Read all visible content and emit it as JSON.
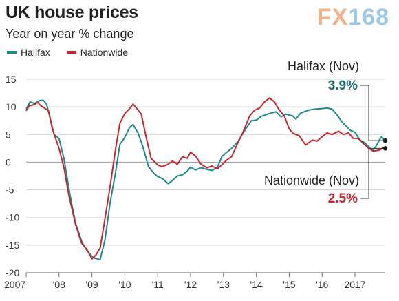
{
  "header": {
    "title": "UK house prices",
    "subtitle": "Year on year % change",
    "logo_fx": "FX",
    "logo_num": "168"
  },
  "colors": {
    "halifax": "#1a8a8a",
    "nationwide": "#c8242b",
    "grid": "#d4d4d4"
  },
  "chart_data": {
    "type": "line",
    "title": "UK house prices",
    "subtitle": "Year on year % change",
    "ylim": [
      -20,
      15
    ],
    "yticks": [
      15,
      10,
      5,
      0,
      -5,
      -10,
      -15,
      -20
    ],
    "xlim": [
      2007.0,
      2017.92
    ],
    "xticks": [
      {
        "label": "2007",
        "x": 2007
      },
      {
        "label": "'08",
        "x": 2008
      },
      {
        "label": "'09",
        "x": 2009
      },
      {
        "label": "'10",
        "x": 2010
      },
      {
        "label": "'11",
        "x": 2011
      },
      {
        "label": "'12",
        "x": 2012
      },
      {
        "label": "'13",
        "x": 2013
      },
      {
        "label": "'14",
        "x": 2014
      },
      {
        "label": "'15",
        "x": 2015
      },
      {
        "label": "'16",
        "x": 2016
      },
      {
        "label": "2017",
        "x": 2017
      }
    ],
    "grid": true,
    "legend": "top-left",
    "series": [
      {
        "name": "Halifax",
        "points": [
          [
            2007.0,
            9.6
          ],
          [
            2007.12,
            10.9
          ],
          [
            2007.25,
            10.6
          ],
          [
            2007.4,
            11.1
          ],
          [
            2007.52,
            11.2
          ],
          [
            2007.62,
            10.5
          ],
          [
            2007.72,
            8.2
          ],
          [
            2007.85,
            5.0
          ],
          [
            2008.0,
            4.3
          ],
          [
            2008.15,
            0.6
          ],
          [
            2008.32,
            -5.5
          ],
          [
            2008.5,
            -11.0
          ],
          [
            2008.7,
            -14.5
          ],
          [
            2008.85,
            -16.0
          ],
          [
            2009.0,
            -17.0
          ],
          [
            2009.1,
            -17.4
          ],
          [
            2009.25,
            -17.6
          ],
          [
            2009.4,
            -14.0
          ],
          [
            2009.55,
            -7.5
          ],
          [
            2009.72,
            -1.8
          ],
          [
            2009.85,
            3.2
          ],
          [
            2010.0,
            4.5
          ],
          [
            2010.15,
            6.3
          ],
          [
            2010.25,
            6.8
          ],
          [
            2010.4,
            5.3
          ],
          [
            2010.55,
            2.8
          ],
          [
            2010.72,
            -0.8
          ],
          [
            2010.9,
            -2.1
          ],
          [
            2011.0,
            -2.6
          ],
          [
            2011.15,
            -3.0
          ],
          [
            2011.32,
            -3.9
          ],
          [
            2011.45,
            -3.3
          ],
          [
            2011.6,
            -2.5
          ],
          [
            2011.75,
            -2.3
          ],
          [
            2011.9,
            -1.6
          ],
          [
            2012.0,
            -0.9
          ],
          [
            2012.15,
            -1.4
          ],
          [
            2012.32,
            -1.0
          ],
          [
            2012.5,
            -1.3
          ],
          [
            2012.65,
            -1.5
          ],
          [
            2012.82,
            -0.9
          ],
          [
            2012.95,
            1.0
          ],
          [
            2013.1,
            1.8
          ],
          [
            2013.25,
            2.5
          ],
          [
            2013.45,
            3.8
          ],
          [
            2013.65,
            5.8
          ],
          [
            2013.85,
            7.5
          ],
          [
            2014.0,
            7.6
          ],
          [
            2014.15,
            8.3
          ],
          [
            2014.3,
            8.6
          ],
          [
            2014.45,
            8.9
          ],
          [
            2014.6,
            9.1
          ],
          [
            2014.75,
            8.2
          ],
          [
            2014.9,
            8.7
          ],
          [
            2015.0,
            8.5
          ],
          [
            2015.1,
            8.4
          ],
          [
            2015.2,
            7.8
          ],
          [
            2015.35,
            8.9
          ],
          [
            2015.5,
            9.2
          ],
          [
            2015.65,
            9.5
          ],
          [
            2015.8,
            9.6
          ],
          [
            2016.0,
            9.7
          ],
          [
            2016.15,
            9.8
          ],
          [
            2016.3,
            9.6
          ],
          [
            2016.45,
            8.6
          ],
          [
            2016.6,
            7.3
          ],
          [
            2016.75,
            6.4
          ],
          [
            2016.85,
            5.8
          ],
          [
            2017.0,
            5.4
          ],
          [
            2017.15,
            4.0
          ],
          [
            2017.3,
            3.5
          ],
          [
            2017.45,
            2.6
          ],
          [
            2017.55,
            2.1
          ],
          [
            2017.65,
            3.0
          ],
          [
            2017.8,
            4.6
          ],
          [
            2017.92,
            3.9
          ]
        ]
      },
      {
        "name": "Nationwide",
        "points": [
          [
            2007.0,
            9.3
          ],
          [
            2007.1,
            10.2
          ],
          [
            2007.25,
            10.4
          ],
          [
            2007.35,
            10.8
          ],
          [
            2007.45,
            10.2
          ],
          [
            2007.55,
            9.8
          ],
          [
            2007.68,
            9.3
          ],
          [
            2007.8,
            6.0
          ],
          [
            2008.0,
            2.5
          ],
          [
            2008.15,
            -1.0
          ],
          [
            2008.3,
            -6.0
          ],
          [
            2008.5,
            -11.2
          ],
          [
            2008.68,
            -14.6
          ],
          [
            2008.85,
            -15.8
          ],
          [
            2009.0,
            -17.5
          ],
          [
            2009.12,
            -16.8
          ],
          [
            2009.25,
            -15.5
          ],
          [
            2009.35,
            -12.0
          ],
          [
            2009.55,
            -4.5
          ],
          [
            2009.72,
            2.4
          ],
          [
            2009.85,
            7.0
          ],
          [
            2010.0,
            8.8
          ],
          [
            2010.12,
            9.5
          ],
          [
            2010.25,
            10.5
          ],
          [
            2010.35,
            9.8
          ],
          [
            2010.5,
            8.7
          ],
          [
            2010.65,
            4.5
          ],
          [
            2010.8,
            0.7
          ],
          [
            2011.0,
            -0.5
          ],
          [
            2011.12,
            -0.8
          ],
          [
            2011.28,
            -0.5
          ],
          [
            2011.45,
            0.2
          ],
          [
            2011.6,
            -0.4
          ],
          [
            2011.75,
            1.0
          ],
          [
            2011.9,
            0.7
          ],
          [
            2012.0,
            1.8
          ],
          [
            2012.15,
            1.1
          ],
          [
            2012.32,
            -0.4
          ],
          [
            2012.5,
            -1.0
          ],
          [
            2012.65,
            -0.7
          ],
          [
            2012.82,
            -1.2
          ],
          [
            2012.95,
            -0.5
          ],
          [
            2013.1,
            0.4
          ],
          [
            2013.25,
            1.0
          ],
          [
            2013.4,
            3.0
          ],
          [
            2013.6,
            5.5
          ],
          [
            2013.8,
            8.4
          ],
          [
            2013.95,
            9.4
          ],
          [
            2014.1,
            9.8
          ],
          [
            2014.25,
            10.9
          ],
          [
            2014.4,
            11.6
          ],
          [
            2014.55,
            10.9
          ],
          [
            2014.7,
            9.4
          ],
          [
            2014.85,
            8.4
          ],
          [
            2015.0,
            6.0
          ],
          [
            2015.12,
            5.2
          ],
          [
            2015.3,
            4.8
          ],
          [
            2015.5,
            3.1
          ],
          [
            2015.7,
            4.0
          ],
          [
            2015.85,
            3.8
          ],
          [
            2016.0,
            4.6
          ],
          [
            2016.15,
            5.3
          ],
          [
            2016.3,
            5.0
          ],
          [
            2016.5,
            5.6
          ],
          [
            2016.65,
            5.0
          ],
          [
            2016.8,
            5.3
          ],
          [
            2016.95,
            4.3
          ],
          [
            2017.1,
            4.3
          ],
          [
            2017.25,
            3.4
          ],
          [
            2017.4,
            2.6
          ],
          [
            2017.55,
            2.0
          ],
          [
            2017.65,
            2.1
          ],
          [
            2017.75,
            2.2
          ],
          [
            2017.85,
            2.6
          ],
          [
            2017.92,
            2.5
          ]
        ]
      }
    ],
    "annotations": [
      {
        "series": "Halifax",
        "label": "Halifax (Nov)",
        "value": "3.9%",
        "y": 3.9
      },
      {
        "series": "Nationwide",
        "label": "Nationwide (Nov)",
        "value": "2.5%",
        "y": 2.5
      }
    ]
  }
}
